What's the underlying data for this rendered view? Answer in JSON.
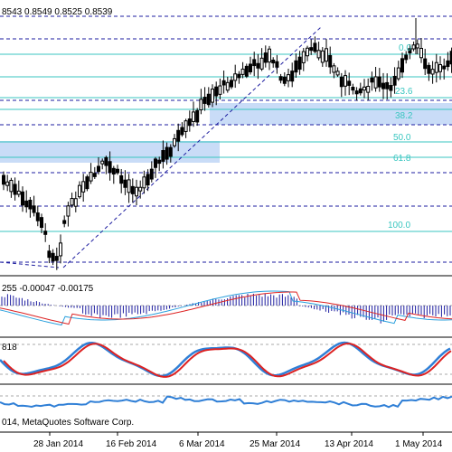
{
  "chart_data": {
    "type": "candlestick",
    "header_prices": "8543 0.8549 0.8525 0.8539",
    "macd_readout": "255 -0.00047 -0.00175",
    "stoch_readout": "818",
    "copyright": "014, MetaQuotes Software Corp.",
    "x_tick_labels": [
      "28 Jan 2014",
      "16 Feb 2014",
      "6 Mar 2014",
      "25 Mar 2014",
      "13 Apr 2014",
      "1 May 2014"
    ],
    "fibonacci_levels": [
      "0.0",
      "23.6",
      "38.2",
      "50.0",
      "61.8",
      "100.0"
    ],
    "colors": {
      "candle": "#000000",
      "fib_line": "#39c6c0",
      "fib_text": "#39c6c0",
      "zone_fill": "#c9dcf7",
      "level_line": "#1e1ea0",
      "macd_hist": "#1e1ea0",
      "macd_signal": "#dd2222",
      "macd_line": "#2aa0dd",
      "stoch_main": "#2f7fd6",
      "stoch_signal": "#dd2222",
      "bottom_line": "#2f7fd6"
    },
    "candles_shape": "price path rises from lows near 28 Jan 2014 to highs in late March and early May 2014",
    "value_range": [
      0.0,
      1.0
    ]
  }
}
